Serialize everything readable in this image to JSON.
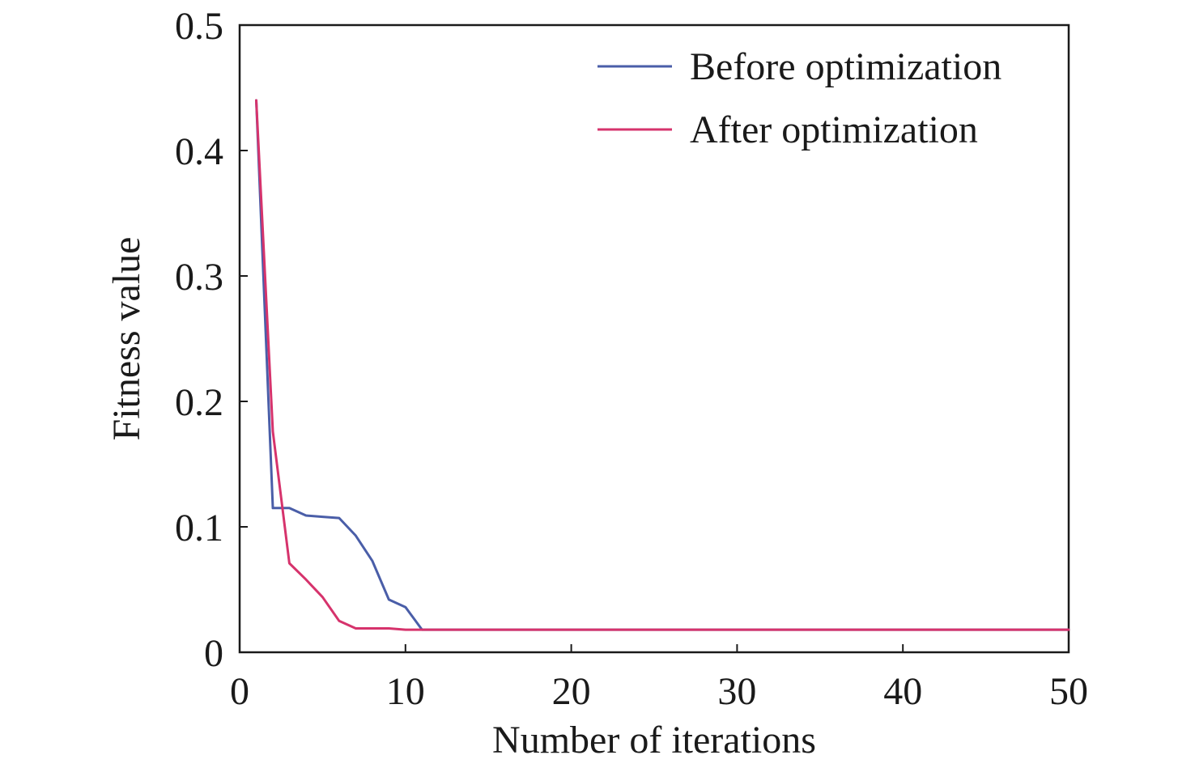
{
  "chart_data": {
    "type": "line",
    "title": "",
    "xlabel": "Number of iterations",
    "ylabel": "Fitness value",
    "xlim": [
      0,
      50
    ],
    "ylim": [
      0,
      0.5
    ],
    "xticks": [
      0,
      10,
      20,
      30,
      40,
      50
    ],
    "xtick_labels": [
      "0",
      "10",
      "20",
      "30",
      "40",
      "50"
    ],
    "yticks": [
      0,
      0.1,
      0.2,
      0.3,
      0.4,
      0.5
    ],
    "ytick_labels": [
      "0",
      "0.1",
      "0.2",
      "0.3",
      "0.4",
      "0.5"
    ],
    "grid": false,
    "legend_position": "top-right",
    "series": [
      {
        "name": "Before optimization",
        "color": "#4a5ea8",
        "x": [
          1,
          2,
          3,
          4,
          5,
          6,
          7,
          8,
          9,
          10,
          11,
          12,
          14,
          16,
          20,
          30,
          40,
          50
        ],
        "y": [
          0.44,
          0.115,
          0.115,
          0.109,
          0.108,
          0.107,
          0.093,
          0.073,
          0.042,
          0.036,
          0.018,
          0.018,
          0.018,
          0.018,
          0.018,
          0.018,
          0.018,
          0.018
        ]
      },
      {
        "name": "After optimization",
        "color": "#d6336c",
        "x": [
          1,
          2,
          3,
          4,
          5,
          6,
          7,
          8,
          9,
          10,
          11,
          14,
          16,
          20,
          30,
          40,
          50
        ],
        "y": [
          0.44,
          0.176,
          0.071,
          0.058,
          0.044,
          0.025,
          0.019,
          0.019,
          0.019,
          0.018,
          0.018,
          0.018,
          0.018,
          0.018,
          0.018,
          0.018,
          0.018
        ]
      }
    ]
  }
}
